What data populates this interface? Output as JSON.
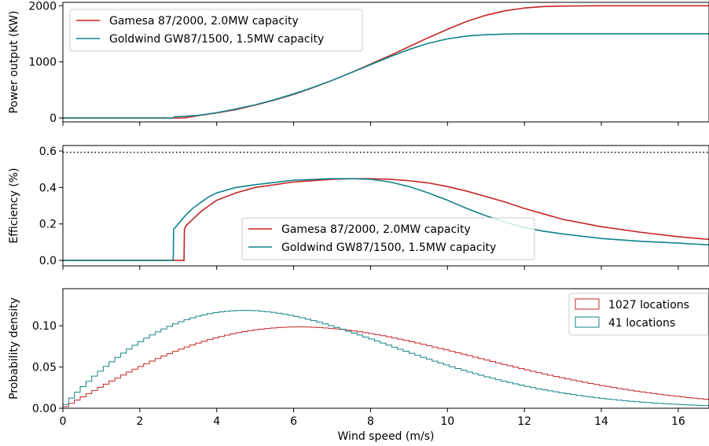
{
  "colors": {
    "red": "#c72424",
    "teal": "#11838a",
    "grid": "#000000"
  },
  "chart_data": [
    {
      "type": "line",
      "ylabel": "Power output (KW)",
      "xlim": [
        0,
        16.8
      ],
      "ylim": [
        -70,
        2060
      ],
      "yticks": [
        0,
        1000,
        2000
      ],
      "legend_position": "top-left",
      "series": [
        {
          "name": "Gamesa 87/2000, 2.0MW capacity",
          "color_key": "red",
          "x": [
            0,
            2.9,
            3.0,
            3.1,
            3.15,
            3.5,
            4,
            4.5,
            5,
            5.5,
            6,
            6.5,
            7,
            7.5,
            8,
            8.5,
            9,
            9.5,
            10,
            10.5,
            11,
            11.5,
            12,
            12.5,
            13,
            14,
            15,
            16.8
          ],
          "y": [
            0,
            0,
            0,
            0,
            0,
            40,
            90,
            150,
            230,
            320,
            420,
            540,
            670,
            810,
            960,
            1110,
            1270,
            1430,
            1580,
            1720,
            1830,
            1910,
            1960,
            1985,
            1995,
            2000,
            2000,
            2000
          ]
        },
        {
          "name": "Goldwind GW87/1500, 1.5MW capacity",
          "color_key": "teal",
          "x": [
            0,
            2.85,
            2.9,
            3.5,
            4,
            4.5,
            5,
            5.5,
            6,
            6.5,
            7,
            7.5,
            8,
            8.5,
            9,
            9.5,
            10,
            10.5,
            11,
            11.5,
            12,
            13,
            14,
            16.8
          ],
          "y": [
            0,
            0,
            20,
            45,
            95,
            160,
            235,
            325,
            430,
            545,
            670,
            810,
            950,
            1090,
            1220,
            1330,
            1410,
            1460,
            1485,
            1495,
            1500,
            1500,
            1500,
            1500
          ]
        }
      ]
    },
    {
      "type": "line",
      "ylabel": "Efficiency (%)",
      "xlim": [
        0,
        16.8
      ],
      "ylim": [
        -0.03,
        0.63
      ],
      "yticks": [
        0.0,
        0.2,
        0.4,
        0.6
      ],
      "ytick_labels": [
        "0.0",
        "0.2",
        "0.4",
        "0.6"
      ],
      "reference_line": 0.593,
      "legend_position": "bottom-center",
      "series": [
        {
          "name": "Gamesa 87/2000, 2.0MW capacity",
          "color_key": "red",
          "x": [
            0,
            3.15,
            3.16,
            3.2,
            3.4,
            3.6,
            3.8,
            4,
            4.5,
            5,
            6,
            7,
            7.5,
            8,
            8.5,
            9,
            9.5,
            10,
            10.5,
            11,
            11.5,
            12,
            12.5,
            13,
            14,
            15,
            16,
            16.8
          ],
          "y": [
            0,
            0,
            0.17,
            0.19,
            0.23,
            0.27,
            0.3,
            0.33,
            0.37,
            0.4,
            0.43,
            0.445,
            0.448,
            0.448,
            0.445,
            0.437,
            0.425,
            0.405,
            0.38,
            0.35,
            0.32,
            0.285,
            0.255,
            0.225,
            0.185,
            0.155,
            0.13,
            0.115
          ]
        },
        {
          "name": "Goldwind GW87/1500, 1.5MW capacity",
          "color_key": "teal",
          "x": [
            0,
            2.87,
            2.88,
            3.0,
            3.2,
            3.4,
            3.6,
            3.8,
            4,
            4.5,
            5,
            6,
            7,
            7.5,
            8,
            8.5,
            9,
            9.5,
            10,
            10.5,
            11,
            11.5,
            12,
            12.5,
            13,
            14,
            15,
            16,
            16.8
          ],
          "y": [
            0,
            0,
            0.17,
            0.2,
            0.25,
            0.29,
            0.32,
            0.35,
            0.37,
            0.4,
            0.415,
            0.44,
            0.448,
            0.448,
            0.445,
            0.43,
            0.405,
            0.37,
            0.33,
            0.285,
            0.245,
            0.21,
            0.18,
            0.16,
            0.145,
            0.12,
            0.105,
            0.095,
            0.085
          ]
        }
      ]
    },
    {
      "type": "histogram",
      "ylabel": "Probability density",
      "xlabel": "Wind speed (m/s)",
      "xlim": [
        0,
        16.8
      ],
      "ylim": [
        0,
        0.145
      ],
      "xticks": [
        0,
        2,
        4,
        6,
        8,
        10,
        12,
        14,
        16
      ],
      "yticks": [
        0.0,
        0.05,
        0.1
      ],
      "ytick_labels": [
        "0.00",
        "0.05",
        "0.10"
      ],
      "legend_position": "top-right",
      "bin_width": 0.15,
      "series": [
        {
          "name": "1027 locations",
          "color_key": "red",
          "distribution": "weibull",
          "k": 2.0,
          "lambda": 8.7
        },
        {
          "name": "41 locations",
          "color_key": "teal",
          "distribution": "weibull",
          "k": 1.9,
          "lambda": 7.0
        }
      ]
    }
  ]
}
